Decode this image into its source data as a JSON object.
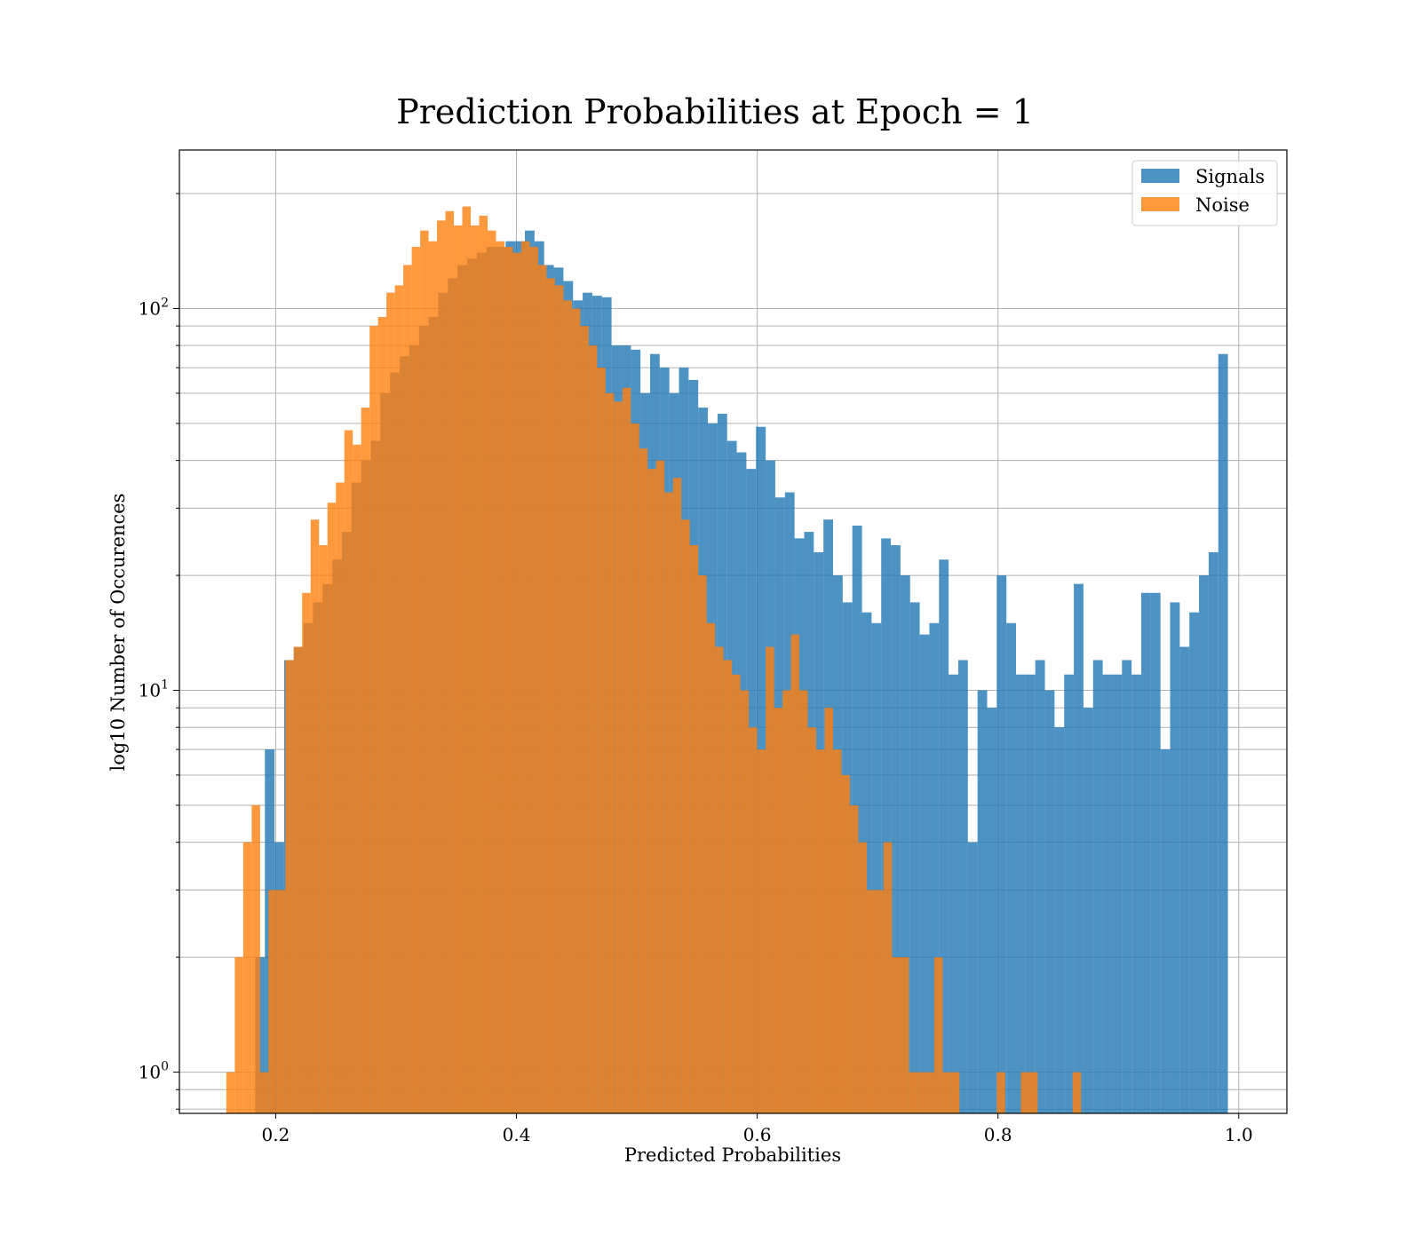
{
  "chart_data": {
    "type": "bar",
    "title": "Prediction Probabilities at Epoch = 1",
    "xlabel": "Predicted Probabilities",
    "ylabel": "log10 Number of Occurences",
    "yscale": "log",
    "xlim": [
      0.12,
      1.04
    ],
    "ylim": [
      0.78,
      260
    ],
    "grid": true,
    "legend_position": "top-right",
    "xticks": [
      0.2,
      0.4,
      0.6,
      0.8,
      1.0
    ],
    "xtick_labels": [
      "0.2",
      "0.4",
      "0.6",
      "0.8",
      "1.0"
    ],
    "ytick_labels": [
      {
        "value": 1,
        "base": "10",
        "exp": "0"
      },
      {
        "value": 10,
        "base": "10",
        "exp": "1"
      },
      {
        "value": 100,
        "base": "10",
        "exp": "2"
      }
    ],
    "series": [
      {
        "name": "Signals",
        "color": "#1f77b4",
        "bins": [
          [
            0.183,
            0.191,
            2
          ],
          [
            0.191,
            0.199,
            7
          ],
          [
            0.199,
            0.207,
            4
          ],
          [
            0.207,
            0.215,
            12
          ],
          [
            0.215,
            0.223,
            13
          ],
          [
            0.223,
            0.231,
            15
          ],
          [
            0.231,
            0.239,
            17
          ],
          [
            0.239,
            0.247,
            19
          ],
          [
            0.247,
            0.255,
            22
          ],
          [
            0.255,
            0.263,
            26
          ],
          [
            0.263,
            0.271,
            35
          ],
          [
            0.271,
            0.279,
            40
          ],
          [
            0.279,
            0.287,
            45
          ],
          [
            0.287,
            0.295,
            60
          ],
          [
            0.295,
            0.303,
            68
          ],
          [
            0.303,
            0.311,
            75
          ],
          [
            0.311,
            0.319,
            80
          ],
          [
            0.319,
            0.327,
            90
          ],
          [
            0.327,
            0.335,
            95
          ],
          [
            0.335,
            0.343,
            110
          ],
          [
            0.343,
            0.351,
            120
          ],
          [
            0.351,
            0.359,
            130
          ],
          [
            0.359,
            0.367,
            135
          ],
          [
            0.367,
            0.375,
            140
          ],
          [
            0.375,
            0.383,
            145
          ],
          [
            0.383,
            0.391,
            145
          ],
          [
            0.391,
            0.399,
            150
          ],
          [
            0.399,
            0.407,
            150
          ],
          [
            0.407,
            0.415,
            160
          ],
          [
            0.415,
            0.423,
            150
          ],
          [
            0.423,
            0.431,
            130
          ],
          [
            0.431,
            0.439,
            128
          ],
          [
            0.439,
            0.447,
            118
          ],
          [
            0.447,
            0.455,
            105
          ],
          [
            0.455,
            0.463,
            110
          ],
          [
            0.463,
            0.471,
            108
          ],
          [
            0.471,
            0.479,
            107
          ],
          [
            0.479,
            0.487,
            80
          ],
          [
            0.487,
            0.495,
            80
          ],
          [
            0.495,
            0.503,
            78
          ],
          [
            0.503,
            0.511,
            60
          ],
          [
            0.511,
            0.519,
            76
          ],
          [
            0.519,
            0.527,
            70
          ],
          [
            0.527,
            0.535,
            60
          ],
          [
            0.535,
            0.543,
            70
          ],
          [
            0.543,
            0.551,
            65
          ],
          [
            0.551,
            0.559,
            55
          ],
          [
            0.559,
            0.567,
            50
          ],
          [
            0.567,
            0.575,
            53
          ],
          [
            0.575,
            0.583,
            45
          ],
          [
            0.583,
            0.591,
            42
          ],
          [
            0.591,
            0.599,
            38
          ],
          [
            0.599,
            0.607,
            49
          ],
          [
            0.607,
            0.615,
            40
          ],
          [
            0.615,
            0.623,
            32
          ],
          [
            0.623,
            0.631,
            33
          ],
          [
            0.631,
            0.639,
            25
          ],
          [
            0.639,
            0.647,
            26
          ],
          [
            0.647,
            0.655,
            23
          ],
          [
            0.655,
            0.663,
            28
          ],
          [
            0.663,
            0.671,
            20
          ],
          [
            0.671,
            0.679,
            17
          ],
          [
            0.679,
            0.687,
            27
          ],
          [
            0.687,
            0.695,
            16
          ],
          [
            0.695,
            0.703,
            15
          ],
          [
            0.703,
            0.711,
            25
          ],
          [
            0.711,
            0.719,
            24
          ],
          [
            0.719,
            0.727,
            20
          ],
          [
            0.727,
            0.735,
            17
          ],
          [
            0.735,
            0.743,
            14
          ],
          [
            0.743,
            0.751,
            15
          ],
          [
            0.751,
            0.759,
            22
          ],
          [
            0.759,
            0.767,
            11
          ],
          [
            0.767,
            0.775,
            12
          ],
          [
            0.775,
            0.783,
            4
          ],
          [
            0.783,
            0.791,
            10
          ],
          [
            0.791,
            0.799,
            9
          ],
          [
            0.799,
            0.807,
            20
          ],
          [
            0.807,
            0.815,
            15
          ],
          [
            0.815,
            0.823,
            11
          ],
          [
            0.823,
            0.831,
            11
          ],
          [
            0.831,
            0.839,
            12
          ],
          [
            0.839,
            0.847,
            10
          ],
          [
            0.847,
            0.855,
            8
          ],
          [
            0.855,
            0.863,
            11
          ],
          [
            0.863,
            0.871,
            19
          ],
          [
            0.871,
            0.879,
            9
          ],
          [
            0.879,
            0.887,
            12
          ],
          [
            0.887,
            0.895,
            11
          ],
          [
            0.895,
            0.903,
            11
          ],
          [
            0.903,
            0.911,
            12
          ],
          [
            0.911,
            0.919,
            11
          ],
          [
            0.919,
            0.927,
            18
          ],
          [
            0.927,
            0.935,
            18
          ],
          [
            0.935,
            0.943,
            7
          ],
          [
            0.943,
            0.951,
            17
          ],
          [
            0.951,
            0.959,
            13
          ],
          [
            0.959,
            0.967,
            16
          ],
          [
            0.967,
            0.975,
            20
          ],
          [
            0.975,
            0.983,
            23
          ],
          [
            0.983,
            0.991,
            76
          ]
        ]
      },
      {
        "name": "Noise",
        "color": "#ff7f0e",
        "bins": [
          [
            0.159,
            0.166,
            1
          ],
          [
            0.166,
            0.173,
            2
          ],
          [
            0.173,
            0.18,
            4
          ],
          [
            0.18,
            0.187,
            5
          ],
          [
            0.187,
            0.194,
            1
          ],
          [
            0.194,
            0.201,
            3
          ],
          [
            0.201,
            0.208,
            3
          ],
          [
            0.208,
            0.215,
            12
          ],
          [
            0.215,
            0.222,
            13
          ],
          [
            0.222,
            0.229,
            18
          ],
          [
            0.229,
            0.236,
            28
          ],
          [
            0.236,
            0.243,
            24
          ],
          [
            0.243,
            0.25,
            31
          ],
          [
            0.25,
            0.257,
            35
          ],
          [
            0.257,
            0.264,
            48
          ],
          [
            0.264,
            0.271,
            44
          ],
          [
            0.271,
            0.278,
            55
          ],
          [
            0.278,
            0.285,
            90
          ],
          [
            0.285,
            0.292,
            95
          ],
          [
            0.292,
            0.299,
            110
          ],
          [
            0.299,
            0.306,
            115
          ],
          [
            0.306,
            0.313,
            130
          ],
          [
            0.313,
            0.32,
            145
          ],
          [
            0.32,
            0.327,
            160
          ],
          [
            0.327,
            0.334,
            150
          ],
          [
            0.334,
            0.341,
            170
          ],
          [
            0.341,
            0.348,
            180
          ],
          [
            0.348,
            0.355,
            165
          ],
          [
            0.355,
            0.362,
            185
          ],
          [
            0.362,
            0.369,
            165
          ],
          [
            0.369,
            0.376,
            175
          ],
          [
            0.376,
            0.383,
            160
          ],
          [
            0.383,
            0.39,
            150
          ],
          [
            0.39,
            0.397,
            145
          ],
          [
            0.397,
            0.404,
            140
          ],
          [
            0.404,
            0.411,
            150
          ],
          [
            0.411,
            0.418,
            145
          ],
          [
            0.418,
            0.425,
            130
          ],
          [
            0.425,
            0.432,
            120
          ],
          [
            0.432,
            0.439,
            115
          ],
          [
            0.439,
            0.446,
            105
          ],
          [
            0.446,
            0.453,
            100
          ],
          [
            0.453,
            0.46,
            90
          ],
          [
            0.46,
            0.467,
            80
          ],
          [
            0.467,
            0.474,
            70
          ],
          [
            0.474,
            0.481,
            60
          ],
          [
            0.481,
            0.488,
            57
          ],
          [
            0.488,
            0.495,
            62
          ],
          [
            0.495,
            0.502,
            50
          ],
          [
            0.502,
            0.509,
            43
          ],
          [
            0.509,
            0.516,
            38
          ],
          [
            0.516,
            0.523,
            40
          ],
          [
            0.523,
            0.53,
            33
          ],
          [
            0.53,
            0.537,
            36
          ],
          [
            0.537,
            0.544,
            28
          ],
          [
            0.544,
            0.551,
            24
          ],
          [
            0.551,
            0.558,
            20
          ],
          [
            0.558,
            0.565,
            15
          ],
          [
            0.565,
            0.572,
            13
          ],
          [
            0.572,
            0.579,
            12
          ],
          [
            0.579,
            0.586,
            11
          ],
          [
            0.586,
            0.593,
            10
          ],
          [
            0.593,
            0.6,
            8
          ],
          [
            0.6,
            0.607,
            7
          ],
          [
            0.607,
            0.614,
            13
          ],
          [
            0.614,
            0.621,
            9
          ],
          [
            0.621,
            0.628,
            10
          ],
          [
            0.628,
            0.635,
            14
          ],
          [
            0.635,
            0.642,
            10
          ],
          [
            0.642,
            0.649,
            8
          ],
          [
            0.649,
            0.656,
            7
          ],
          [
            0.656,
            0.663,
            9
          ],
          [
            0.663,
            0.67,
            7
          ],
          [
            0.67,
            0.677,
            6
          ],
          [
            0.677,
            0.684,
            5
          ],
          [
            0.684,
            0.691,
            4
          ],
          [
            0.691,
            0.698,
            3
          ],
          [
            0.698,
            0.705,
            3
          ],
          [
            0.705,
            0.712,
            4
          ],
          [
            0.712,
            0.719,
            2
          ],
          [
            0.719,
            0.726,
            2
          ],
          [
            0.726,
            0.733,
            1
          ],
          [
            0.733,
            0.74,
            1
          ],
          [
            0.74,
            0.747,
            1
          ],
          [
            0.747,
            0.754,
            2
          ],
          [
            0.754,
            0.761,
            1
          ],
          [
            0.761,
            0.768,
            1
          ],
          [
            0.799,
            0.806,
            1
          ],
          [
            0.819,
            0.826,
            1
          ],
          [
            0.826,
            0.833,
            1
          ],
          [
            0.862,
            0.869,
            1
          ]
        ]
      }
    ]
  }
}
